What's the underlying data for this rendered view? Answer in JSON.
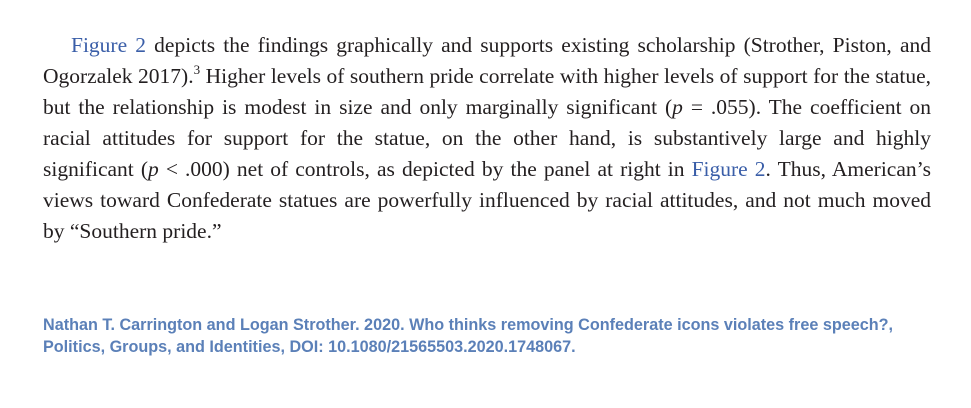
{
  "paragraph": {
    "segments": [
      {
        "text": "Figure 2",
        "style": "link"
      },
      {
        "text": " depicts the findings graphically and supports existing scholarship (Strother, Piston, and Ogorzalek 2017).",
        "style": "plain"
      },
      {
        "text": "3",
        "style": "sup"
      },
      {
        "text": " Higher levels of southern pride correlate with higher levels of support for the statue, but the relationship is modest in size and only marginally significant (",
        "style": "plain"
      },
      {
        "text": "p",
        "style": "italic"
      },
      {
        "text": " = .055). The coefficient on racial attitudes for support for the statue, on the other hand, is substantively large and highly significant (",
        "style": "plain"
      },
      {
        "text": "p",
        "style": "italic"
      },
      {
        "text": " < .000) net of controls, as depicted by the panel at right in ",
        "style": "plain"
      },
      {
        "text": "Figure 2",
        "style": "link"
      },
      {
        "text": ". Thus, American’s views toward Confederate statues are powerfully influenced by racial attitudes, and not much moved by “Southern pride.”",
        "style": "plain"
      }
    ]
  },
  "citation": "Nathan T. Carrington and Logan Strother. 2020. Who thinks removing Confederate icons violates free speech?, Politics, Groups, and Identities, DOI: 10.1080/21565503.2020.1748067."
}
